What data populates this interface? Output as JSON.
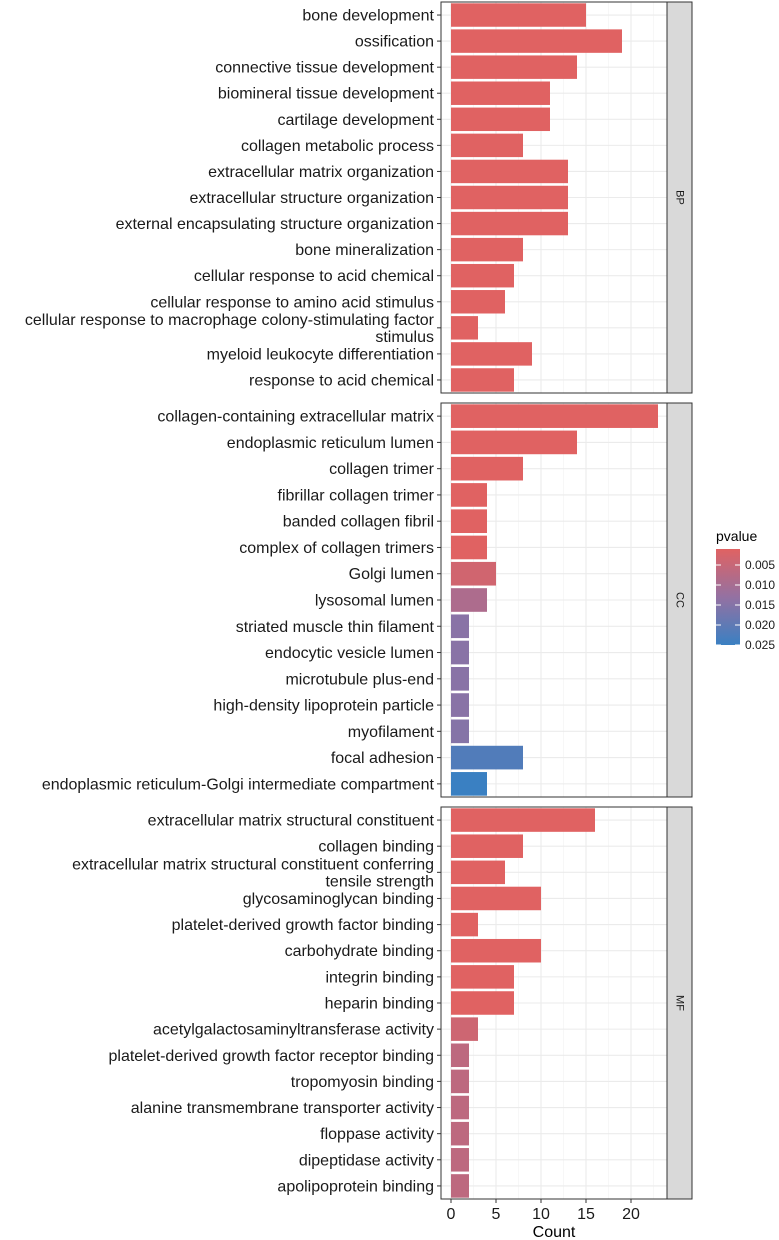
{
  "chart_data": {
    "type": "bar",
    "orientation": "horizontal",
    "xlabel": "Count",
    "xlim": [
      0,
      24
    ],
    "xticks": [
      0,
      5,
      10,
      15,
      20
    ],
    "color_scale": {
      "title": "pvalue",
      "range": [
        0.001,
        0.025
      ],
      "ticks": [
        0.005,
        0.01,
        0.015,
        0.02,
        0.025
      ],
      "tick_labels": [
        "0.005",
        "0.010",
        "0.015",
        "0.020",
        "0.025"
      ],
      "low_color": "#e06262",
      "high_color": "#3a80c2"
    },
    "facets": [
      {
        "name": "BP",
        "terms": [
          {
            "label": [
              "bone development"
            ],
            "count": 15,
            "pvalue": 0.001
          },
          {
            "label": [
              "ossification"
            ],
            "count": 19,
            "pvalue": 0.001
          },
          {
            "label": [
              "connective tissue development"
            ],
            "count": 14,
            "pvalue": 0.001
          },
          {
            "label": [
              "biomineral tissue development"
            ],
            "count": 11,
            "pvalue": 0.001
          },
          {
            "label": [
              "cartilage development"
            ],
            "count": 11,
            "pvalue": 0.001
          },
          {
            "label": [
              "collagen metabolic process"
            ],
            "count": 8,
            "pvalue": 0.001
          },
          {
            "label": [
              "extracellular matrix organization"
            ],
            "count": 13,
            "pvalue": 0.001
          },
          {
            "label": [
              "extracellular structure organization"
            ],
            "count": 13,
            "pvalue": 0.001
          },
          {
            "label": [
              "external encapsulating structure organization"
            ],
            "count": 13,
            "pvalue": 0.001
          },
          {
            "label": [
              "bone mineralization"
            ],
            "count": 8,
            "pvalue": 0.001
          },
          {
            "label": [
              "cellular response to acid chemical"
            ],
            "count": 7,
            "pvalue": 0.001
          },
          {
            "label": [
              "cellular response to amino acid stimulus"
            ],
            "count": 6,
            "pvalue": 0.001
          },
          {
            "label": [
              "cellular response to macrophage colony-stimulating factor",
              "stimulus"
            ],
            "count": 3,
            "pvalue": 0.001
          },
          {
            "label": [
              "myeloid leukocyte differentiation"
            ],
            "count": 9,
            "pvalue": 0.001
          },
          {
            "label": [
              "response to acid chemical"
            ],
            "count": 7,
            "pvalue": 0.001
          }
        ]
      },
      {
        "name": "CC",
        "terms": [
          {
            "label": [
              "collagen-containing extracellular matrix"
            ],
            "count": 23,
            "pvalue": 0.001
          },
          {
            "label": [
              "endoplasmic reticulum lumen"
            ],
            "count": 14,
            "pvalue": 0.001
          },
          {
            "label": [
              "collagen trimer"
            ],
            "count": 8,
            "pvalue": 0.001
          },
          {
            "label": [
              "fibrillar collagen trimer"
            ],
            "count": 4,
            "pvalue": 0.001
          },
          {
            "label": [
              "banded collagen fibril"
            ],
            "count": 4,
            "pvalue": 0.001
          },
          {
            "label": [
              "complex of collagen trimers"
            ],
            "count": 4,
            "pvalue": 0.001
          },
          {
            "label": [
              "Golgi lumen"
            ],
            "count": 5,
            "pvalue": 0.0035
          },
          {
            "label": [
              "lysosomal lumen"
            ],
            "count": 4,
            "pvalue": 0.009
          },
          {
            "label": [
              "striated muscle thin filament"
            ],
            "count": 2,
            "pvalue": 0.0145
          },
          {
            "label": [
              "endocytic vesicle lumen"
            ],
            "count": 2,
            "pvalue": 0.0145
          },
          {
            "label": [
              "microtubule plus-end"
            ],
            "count": 2,
            "pvalue": 0.0145
          },
          {
            "label": [
              "high-density lipoprotein particle"
            ],
            "count": 2,
            "pvalue": 0.0145
          },
          {
            "label": [
              "myofilament"
            ],
            "count": 2,
            "pvalue": 0.015
          },
          {
            "label": [
              "focal adhesion"
            ],
            "count": 8,
            "pvalue": 0.022
          },
          {
            "label": [
              "endoplasmic reticulum-Golgi intermediate compartment"
            ],
            "count": 4,
            "pvalue": 0.025
          }
        ]
      },
      {
        "name": "MF",
        "terms": [
          {
            "label": [
              "extracellular matrix structural constituent"
            ],
            "count": 16,
            "pvalue": 0.001
          },
          {
            "label": [
              "collagen binding"
            ],
            "count": 8,
            "pvalue": 0.001
          },
          {
            "label": [
              "extracellular matrix structural constituent conferring",
              "tensile strength"
            ],
            "count": 6,
            "pvalue": 0.001
          },
          {
            "label": [
              "glycosaminoglycan binding"
            ],
            "count": 10,
            "pvalue": 0.001
          },
          {
            "label": [
              "platelet-derived growth factor binding"
            ],
            "count": 3,
            "pvalue": 0.001
          },
          {
            "label": [
              "carbohydrate binding"
            ],
            "count": 10,
            "pvalue": 0.001
          },
          {
            "label": [
              "integrin binding"
            ],
            "count": 7,
            "pvalue": 0.001
          },
          {
            "label": [
              "heparin binding"
            ],
            "count": 7,
            "pvalue": 0.001
          },
          {
            "label": [
              "acetylgalactosaminyltransferase activity"
            ],
            "count": 3,
            "pvalue": 0.004
          },
          {
            "label": [
              "platelet-derived growth factor receptor binding"
            ],
            "count": 2,
            "pvalue": 0.0065
          },
          {
            "label": [
              "tropomyosin binding"
            ],
            "count": 2,
            "pvalue": 0.0065
          },
          {
            "label": [
              "alanine transmembrane transporter activity"
            ],
            "count": 2,
            "pvalue": 0.0065
          },
          {
            "label": [
              "floppase activity"
            ],
            "count": 2,
            "pvalue": 0.0065
          },
          {
            "label": [
              "dipeptidase activity"
            ],
            "count": 2,
            "pvalue": 0.0065
          },
          {
            "label": [
              "apolipoprotein binding"
            ],
            "count": 2,
            "pvalue": 0.0065
          }
        ]
      }
    ]
  }
}
